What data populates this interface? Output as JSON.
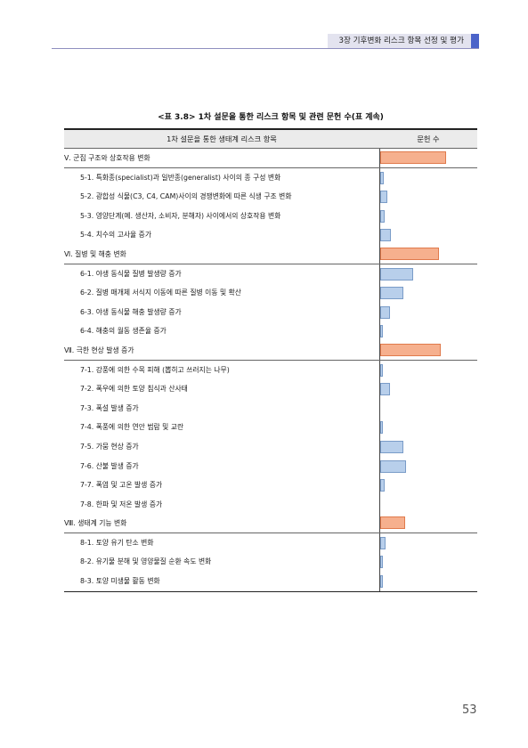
{
  "header": {
    "chapter": "3장 기후변화 리스크 항목 선정 및 평가"
  },
  "caption": "<표 3.8> 1차 설문을 통한 리스크 항목 및 관련 문헌 수(표 계속)",
  "table": {
    "col1_header": "1차 설문을 통한 생태계 리스크 항목",
    "col2_header": "문헌 수",
    "rows": [
      {
        "type": "cat",
        "label": "Ⅴ. 군집 구조와 상호작용 변화",
        "value": 0.93
      },
      {
        "type": "item",
        "label": "5-1. 특화종(specialist)과 일반종(generalist) 사이의 종 구성 변화",
        "value": 0.05
      },
      {
        "type": "item",
        "label": "5-2. 광합성 식물(C3, C4, CAM)사이의 경쟁변화에 따른 식생 구조 변화",
        "value": 0.1
      },
      {
        "type": "item",
        "label": "5-3. 영양단계(예. 생산자, 소비자, 분해자) 사이에서의 상호작용 변화",
        "value": 0.06
      },
      {
        "type": "item",
        "label": "5-4. 치수의 고사율 증가",
        "value": 0.15
      },
      {
        "type": "cat",
        "label": "Ⅵ. 질병 및 해충 변화",
        "value": 0.83
      },
      {
        "type": "item",
        "label": "6-1. 야생 동식물 질병 발생량 증가",
        "value": 0.46
      },
      {
        "type": "item",
        "label": "6-2. 질병 매개체 서식지 이동에 따른 질병 이동 및 확산",
        "value": 0.32
      },
      {
        "type": "item",
        "label": "6-3. 야생 동식물 해충 발생량 증가",
        "value": 0.14
      },
      {
        "type": "item",
        "label": "6-4. 해충의 월동 생존율 증가",
        "value": 0.04
      },
      {
        "type": "cat",
        "label": "Ⅶ. 극한 현상 발생 증가",
        "value": 0.85
      },
      {
        "type": "item",
        "label": "7-1. 강풍에 의한 수목 피해 (뽑히고 쓰러지는 나무)",
        "value": 0.02
      },
      {
        "type": "item",
        "label": "7-2. 폭우에 의한 토양 침식과 산사태",
        "value": 0.14
      },
      {
        "type": "item",
        "label": "7-3. 폭설 발생 증가",
        "value": 0.0
      },
      {
        "type": "item",
        "label": "7-4. 폭풍에 의한 연안 범람 및 교란",
        "value": 0.04
      },
      {
        "type": "item",
        "label": "7-5. 가뭄 현상 증가",
        "value": 0.33
      },
      {
        "type": "item",
        "label": "7-6. 산불 발생 증가",
        "value": 0.36
      },
      {
        "type": "item",
        "label": "7-7. 폭염 및 고온 발생 증가",
        "value": 0.06
      },
      {
        "type": "item",
        "label": "7-8. 한파 및 저온 발생 증가",
        "value": 0.0
      },
      {
        "type": "cat",
        "label": "Ⅷ. 생태계 기능 변화",
        "value": 0.35
      },
      {
        "type": "item",
        "label": "8-1. 토양 유기 탄소 변화",
        "value": 0.08
      },
      {
        "type": "item",
        "label": "8-2. 유기물 분해 및 영양물질 순환 속도 변화",
        "value": 0.02
      },
      {
        "type": "item",
        "label": "8-3. 토양 미생물 활동 변화",
        "value": 0.02
      }
    ]
  },
  "page_number": "53"
}
